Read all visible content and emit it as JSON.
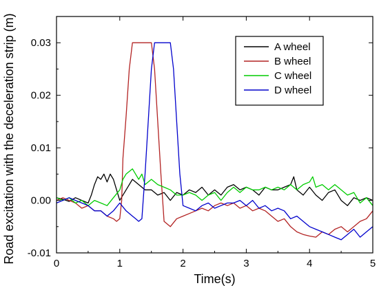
{
  "chart_data": {
    "type": "line",
    "xlabel": "Time(s)",
    "ylabel": "Road excitation with the deceleration strip (m)",
    "xlim": [
      0,
      5
    ],
    "ylim": [
      -0.01,
      0.035
    ],
    "x_ticks": [
      "0",
      "1",
      "2",
      "3",
      "4",
      "5"
    ],
    "y_ticks": [
      "-0.01",
      "0.00",
      "0.01",
      "0.02",
      "0.03"
    ],
    "x_tick_values": [
      0,
      1,
      2,
      3,
      4,
      5
    ],
    "y_tick_values": [
      -0.01,
      0,
      0.01,
      0.02,
      0.03
    ],
    "grid": false,
    "legend_position": "top-right",
    "series": [
      {
        "name": "A wheel",
        "color": "#000000",
        "x": [
          0,
          0.1,
          0.2,
          0.3,
          0.4,
          0.5,
          0.55,
          0.6,
          0.65,
          0.7,
          0.75,
          0.8,
          0.85,
          0.9,
          0.95,
          1.0,
          1.1,
          1.2,
          1.3,
          1.4,
          1.5,
          1.6,
          1.7,
          1.8,
          1.9,
          2.0,
          2.1,
          2.2,
          2.3,
          2.4,
          2.5,
          2.6,
          2.7,
          2.8,
          2.9,
          3.0,
          3.1,
          3.2,
          3.3,
          3.4,
          3.5,
          3.6,
          3.7,
          3.75,
          3.8,
          3.9,
          4.0,
          4.1,
          4.2,
          4.3,
          4.4,
          4.5,
          4.6,
          4.7,
          4.8,
          4.9,
          5.0
        ],
        "y": [
          0.0005,
          0.0002,
          -0.0002,
          0.0005,
          0.0,
          -0.0005,
          0.001,
          0.003,
          0.0045,
          0.004,
          0.005,
          0.0035,
          0.005,
          0.004,
          0.002,
          0.0,
          0.002,
          0.004,
          0.003,
          0.002,
          0.002,
          0.001,
          0.0015,
          0.0,
          0.0015,
          0.001,
          0.002,
          0.0015,
          0.0025,
          0.001,
          0.002,
          0.001,
          0.0025,
          0.003,
          0.002,
          0.0025,
          0.002,
          0.001,
          0.0025,
          0.002,
          0.002,
          0.0025,
          0.003,
          0.0045,
          0.002,
          0.001,
          0.0025,
          0.001,
          0.0,
          0.0015,
          0.002,
          0.0,
          -0.001,
          0.0005,
          0.0,
          0.0005,
          0.0
        ]
      },
      {
        "name": "B wheel",
        "color": "#b22222",
        "x": [
          0,
          0.1,
          0.2,
          0.3,
          0.4,
          0.5,
          0.6,
          0.7,
          0.8,
          0.9,
          0.95,
          1.0,
          1.03,
          1.05,
          1.1,
          1.15,
          1.2,
          1.25,
          1.3,
          1.35,
          1.4,
          1.45,
          1.5,
          1.55,
          1.6,
          1.65,
          1.7,
          1.8,
          1.9,
          2.0,
          2.1,
          2.2,
          2.3,
          2.4,
          2.5,
          2.6,
          2.7,
          2.8,
          2.9,
          3.0,
          3.1,
          3.2,
          3.3,
          3.4,
          3.5,
          3.6,
          3.7,
          3.8,
          3.9,
          4.0,
          4.1,
          4.2,
          4.3,
          4.4,
          4.5,
          4.6,
          4.7,
          4.8,
          4.9,
          5.0
        ],
        "y": [
          0.0,
          0.0005,
          0.0,
          -0.0005,
          -0.0015,
          -0.001,
          -0.002,
          -0.002,
          -0.003,
          -0.0035,
          -0.004,
          -0.0035,
          0.0,
          0.008,
          0.016,
          0.025,
          0.03,
          0.03,
          0.03,
          0.03,
          0.03,
          0.03,
          0.03,
          0.025,
          0.015,
          0.005,
          -0.004,
          -0.005,
          -0.0035,
          -0.003,
          -0.0025,
          -0.002,
          -0.0015,
          -0.002,
          -0.001,
          -0.0005,
          -0.001,
          -0.0005,
          -0.0015,
          -0.001,
          -0.002,
          -0.0015,
          -0.002,
          -0.003,
          -0.004,
          -0.0035,
          -0.005,
          -0.006,
          -0.0065,
          -0.0068,
          -0.007,
          -0.006,
          -0.0065,
          -0.0055,
          -0.005,
          -0.006,
          -0.005,
          -0.004,
          -0.0035,
          -0.002
        ]
      },
      {
        "name": "C wheel",
        "color": "#00cc00",
        "x": [
          0,
          0.1,
          0.2,
          0.3,
          0.4,
          0.5,
          0.6,
          0.7,
          0.8,
          0.9,
          1.0,
          1.05,
          1.1,
          1.2,
          1.3,
          1.35,
          1.4,
          1.5,
          1.6,
          1.7,
          1.8,
          1.9,
          2.0,
          2.1,
          2.2,
          2.3,
          2.4,
          2.5,
          2.6,
          2.7,
          2.8,
          2.9,
          3.0,
          3.1,
          3.2,
          3.3,
          3.4,
          3.5,
          3.6,
          3.7,
          3.8,
          3.9,
          4.0,
          4.05,
          4.1,
          4.2,
          4.3,
          4.4,
          4.5,
          4.6,
          4.7,
          4.8,
          4.9,
          5.0
        ],
        "y": [
          0.0005,
          0.0,
          0.0005,
          -0.0005,
          0.0,
          -0.001,
          0.0,
          -0.0005,
          -0.001,
          0.0005,
          0.002,
          0.004,
          0.005,
          0.006,
          0.004,
          0.005,
          0.003,
          0.004,
          0.003,
          0.0025,
          0.002,
          0.001,
          0.001,
          0.0015,
          0.001,
          0.0,
          0.001,
          0.0015,
          0.0,
          0.0015,
          0.0025,
          0.0015,
          0.0025,
          0.002,
          0.002,
          0.0025,
          0.002,
          0.0025,
          0.002,
          0.003,
          0.002,
          0.003,
          0.0035,
          0.0045,
          0.0025,
          0.003,
          0.002,
          0.003,
          0.002,
          0.001,
          0.0015,
          -0.0005,
          0.0005,
          -0.001
        ]
      },
      {
        "name": "D wheel",
        "color": "#0000cc",
        "x": [
          0,
          0.1,
          0.2,
          0.3,
          0.4,
          0.5,
          0.6,
          0.7,
          0.8,
          0.9,
          1.0,
          1.1,
          1.2,
          1.25,
          1.3,
          1.35,
          1.4,
          1.45,
          1.5,
          1.55,
          1.6,
          1.65,
          1.7,
          1.75,
          1.8,
          1.85,
          1.9,
          1.95,
          2.0,
          2.1,
          2.2,
          2.3,
          2.4,
          2.5,
          2.6,
          2.7,
          2.8,
          2.9,
          3.0,
          3.1,
          3.2,
          3.3,
          3.4,
          3.5,
          3.6,
          3.7,
          3.8,
          3.9,
          4.0,
          4.1,
          4.2,
          4.3,
          4.4,
          4.5,
          4.6,
          4.7,
          4.8,
          4.9,
          5.0
        ],
        "y": [
          -0.0005,
          0.0,
          0.0005,
          0.0,
          -0.0005,
          -0.001,
          -0.002,
          -0.002,
          -0.003,
          -0.002,
          -0.0005,
          -0.002,
          -0.003,
          -0.0035,
          -0.004,
          -0.0035,
          0.005,
          0.015,
          0.025,
          0.03,
          0.03,
          0.03,
          0.03,
          0.03,
          0.03,
          0.025,
          0.015,
          0.005,
          -0.001,
          -0.0015,
          -0.002,
          -0.001,
          -0.0005,
          -0.0015,
          -0.001,
          -0.0005,
          -0.0005,
          0.0,
          -0.001,
          0.0,
          -0.0015,
          -0.001,
          -0.002,
          -0.0015,
          -0.002,
          -0.0035,
          -0.003,
          -0.004,
          -0.005,
          -0.0055,
          -0.006,
          -0.0065,
          -0.007,
          -0.0075,
          -0.0065,
          -0.0055,
          -0.007,
          -0.006,
          -0.005
        ]
      }
    ]
  }
}
